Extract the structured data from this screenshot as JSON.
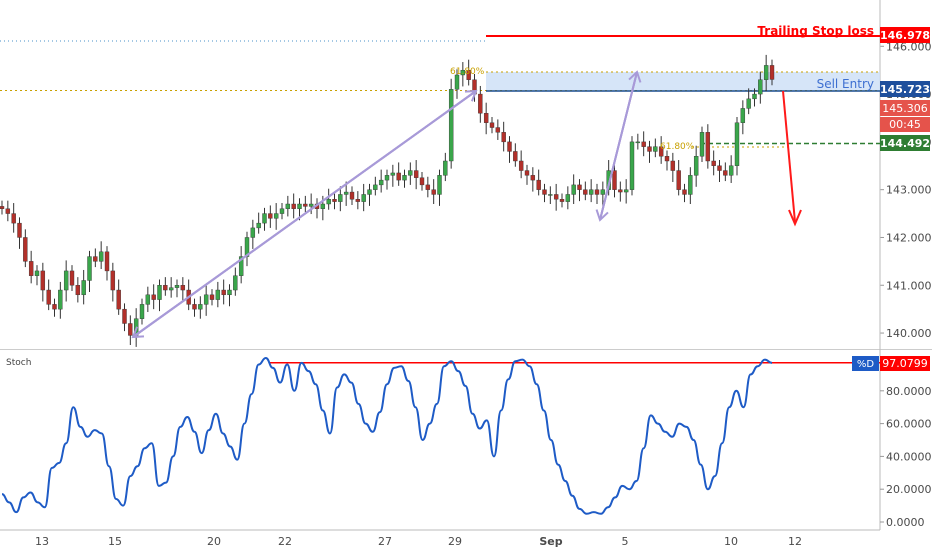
{
  "chart_data": [
    {
      "type": "candlestick",
      "name": "price-panel",
      "y_ticks": [
        "146.000",
        "145.000",
        "144.000",
        "143.000",
        "142.000",
        "141.000",
        "140.000"
      ],
      "ylim": [
        139.75,
        146.55
      ],
      "x_ticks": [
        "13",
        "15",
        "20",
        "22",
        "27",
        "29",
        "Sep",
        "5",
        "10",
        "12"
      ],
      "levels": [
        {
          "label": "Trailing Stop loss",
          "value_label": "146.978",
          "value": 146.978,
          "color": "#ff0000"
        },
        {
          "label": "Sell Entry",
          "value_label": "145.723",
          "value": 145.723,
          "color": "#1e5aa8"
        },
        {
          "label": "",
          "value_label": "144.492",
          "value": 144.492,
          "color": "#2e7d32"
        }
      ],
      "price_tags": [
        {
          "text": "145.306",
          "value": 145.306,
          "color": "#e53935"
        },
        {
          "text": "00:45",
          "color": "#e53935"
        }
      ],
      "fib_labels": [
        "61.80%",
        "61.80%"
      ],
      "close_series": [
        142.6,
        142.5,
        142.3,
        142.0,
        141.5,
        141.2,
        141.3,
        140.9,
        140.6,
        140.5,
        140.9,
        141.3,
        141.0,
        140.8,
        141.1,
        141.6,
        141.5,
        141.7,
        141.3,
        140.9,
        140.5,
        140.2,
        139.95,
        140.3,
        140.6,
        140.8,
        140.7,
        141.0,
        140.9,
        140.95,
        141.0,
        140.9,
        140.6,
        140.5,
        140.6,
        140.8,
        140.7,
        140.9,
        140.8,
        140.9,
        141.2,
        141.6,
        142.0,
        142.2,
        142.3,
        142.5,
        142.4,
        142.5,
        142.6,
        142.7,
        142.6,
        142.7,
        142.65,
        142.7,
        142.6,
        142.7,
        142.8,
        142.75,
        142.9,
        142.95,
        142.8,
        142.75,
        142.9,
        143.0,
        143.1,
        143.2,
        143.3,
        143.35,
        143.2,
        143.3,
        143.4,
        143.25,
        143.1,
        143.0,
        142.9,
        143.3,
        143.6,
        145.1,
        145.4,
        145.5,
        145.3,
        145.0,
        144.6,
        144.4,
        144.3,
        144.2,
        144.0,
        143.8,
        143.6,
        143.4,
        143.3,
        143.2,
        143.0,
        142.9,
        142.9,
        142.8,
        142.75,
        142.9,
        143.1,
        143.0,
        142.9,
        143.0,
        142.9,
        143.0,
        143.4,
        143.0,
        142.95,
        143.0,
        144.0,
        144.0,
        143.9,
        143.8,
        143.9,
        143.7,
        143.6,
        143.4,
        143.0,
        142.9,
        143.3,
        143.7,
        144.2,
        143.6,
        143.5,
        143.4,
        143.3,
        143.5,
        144.4,
        144.7,
        144.9,
        145.0,
        145.3,
        145.6,
        145.306
      ]
    },
    {
      "type": "line",
      "name": "stochastic-panel",
      "title": "Stoch",
      "y_ticks": [
        "80.0000",
        "60.0000",
        "40.0000",
        "20.0000",
        "0.0000"
      ],
      "ylim": [
        0,
        100
      ],
      "series": [
        {
          "name": "%D",
          "value_label": "97.0799",
          "values": [
            17,
            12,
            6,
            15,
            18,
            12,
            9,
            33,
            36,
            48,
            70,
            58,
            52,
            56,
            54,
            34,
            14,
            10,
            28,
            34,
            45,
            48,
            22,
            24,
            40,
            58,
            64,
            55,
            42,
            56,
            66,
            54,
            46,
            38,
            60,
            78,
            96,
            100,
            94,
            85,
            96,
            80,
            97,
            92,
            84,
            68,
            54,
            82,
            90,
            85,
            72,
            60,
            55,
            67,
            84,
            94,
            95,
            86,
            70,
            50,
            60,
            72,
            95,
            98,
            92,
            83,
            66,
            57,
            62,
            40,
            68,
            87,
            98,
            99,
            95,
            84,
            68,
            50,
            35,
            25,
            16,
            8,
            5,
            6,
            5,
            9,
            15,
            22,
            20,
            25,
            45,
            65,
            60,
            55,
            52,
            60,
            58,
            50,
            35,
            20,
            28,
            48,
            70,
            80,
            70,
            90,
            95,
            99,
            97
          ],
          "color": "#1e5bc6"
        },
        {
          "name": "level",
          "value": 97.08,
          "color": "#ff0000"
        }
      ]
    }
  ]
}
